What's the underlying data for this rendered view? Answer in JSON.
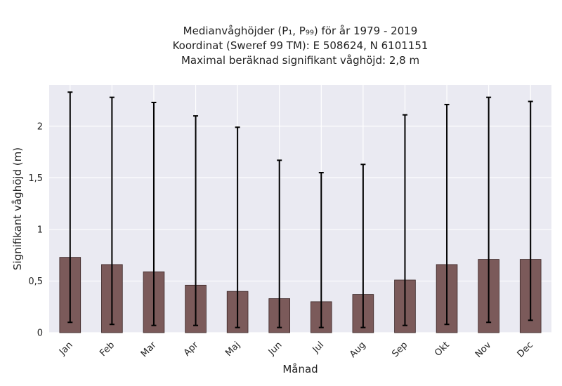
{
  "chart_data": {
    "type": "bar",
    "title_lines": [
      "Medianvåghöjder (P₁, P₉₉) för år 1979 - 2019",
      "Koordinat (Sweref 99 TM): E 508624, N 6101151",
      "Maximal beräknad signifikant våghöjd: 2,8 m"
    ],
    "xlabel": "Månad",
    "ylabel": "Signifikant våghöjd (m)",
    "categories": [
      "Jan",
      "Feb",
      "Mar",
      "Apr",
      "Maj",
      "Jun",
      "Jul",
      "Aug",
      "Sep",
      "Okt",
      "Nov",
      "Dec"
    ],
    "values": [
      0.73,
      0.66,
      0.59,
      0.46,
      0.4,
      0.33,
      0.3,
      0.37,
      0.51,
      0.66,
      0.71,
      0.71
    ],
    "error_low": [
      0.1,
      0.08,
      0.07,
      0.07,
      0.05,
      0.05,
      0.05,
      0.05,
      0.07,
      0.08,
      0.1,
      0.12
    ],
    "error_high": [
      2.33,
      2.28,
      2.23,
      2.1,
      1.99,
      1.67,
      1.55,
      1.63,
      2.11,
      2.21,
      2.28,
      2.24
    ],
    "ylim": [
      0,
      2.4
    ],
    "yticks": [
      0,
      0.5,
      1,
      1.5,
      2
    ],
    "ytick_labels": [
      "0",
      "0,5",
      "1",
      "1,5",
      "2"
    ],
    "grid": true,
    "colors": {
      "bar": "#7b5a5a",
      "bar_edge": "#3a2626",
      "error": "#000000",
      "background": "#eaeaf2",
      "grid": "#ffffff"
    }
  }
}
